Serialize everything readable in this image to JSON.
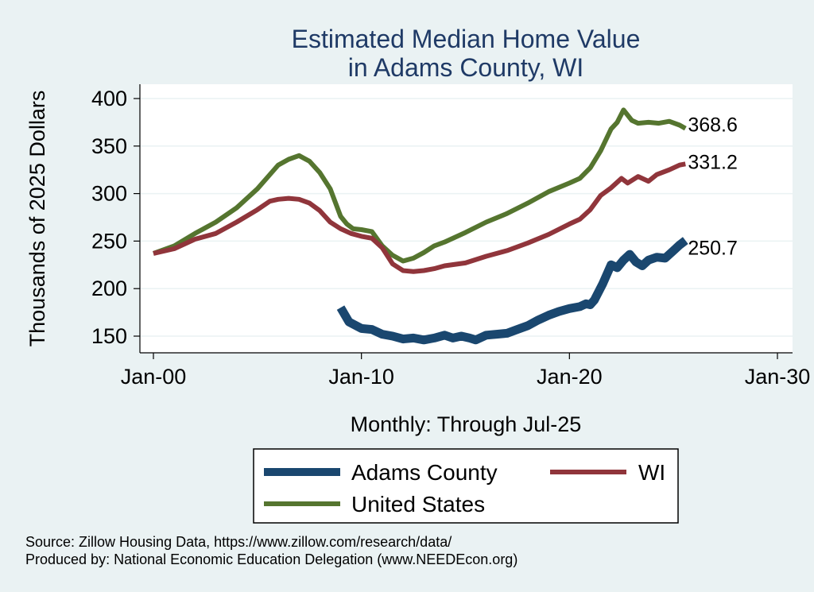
{
  "chart_data": {
    "type": "line",
    "title": "Estimated Median Home Value",
    "subtitle": "in Adams County, WI",
    "ylabel": "Thousands of 2025 Dollars",
    "xlabel": "Monthly: Through Jul-25",
    "xlim": [
      2000,
      2030
    ],
    "ylim": [
      140,
      410
    ],
    "yticks": [
      150,
      200,
      250,
      300,
      350,
      400
    ],
    "xticks": [
      {
        "value": 2000,
        "label": "Jan-00"
      },
      {
        "value": 2010,
        "label": "Jan-10"
      },
      {
        "value": 2020,
        "label": "Jan-20"
      },
      {
        "value": 2030,
        "label": "Jan-30"
      }
    ],
    "grid": true,
    "legend_position": "bottom",
    "series": [
      {
        "name": "Adams County",
        "color": "#1a476f",
        "end_label": "250.7",
        "points": [
          [
            2009.0,
            180
          ],
          [
            2009.4,
            165
          ],
          [
            2010.0,
            158
          ],
          [
            2010.5,
            157
          ],
          [
            2011.0,
            152
          ],
          [
            2011.5,
            150
          ],
          [
            2012.0,
            147
          ],
          [
            2012.5,
            148
          ],
          [
            2013.0,
            146
          ],
          [
            2013.5,
            148
          ],
          [
            2014.0,
            151
          ],
          [
            2014.4,
            148
          ],
          [
            2014.8,
            150
          ],
          [
            2015.2,
            148
          ],
          [
            2015.5,
            146
          ],
          [
            2016.0,
            151
          ],
          [
            2016.5,
            152
          ],
          [
            2017.0,
            153
          ],
          [
            2017.5,
            157
          ],
          [
            2018.0,
            161
          ],
          [
            2018.5,
            167
          ],
          [
            2019.0,
            172
          ],
          [
            2019.5,
            176
          ],
          [
            2020.0,
            179
          ],
          [
            2020.5,
            181
          ],
          [
            2020.8,
            184
          ],
          [
            2021.0,
            183
          ],
          [
            2021.2,
            188
          ],
          [
            2021.6,
            205
          ],
          [
            2022.0,
            225
          ],
          [
            2022.3,
            222
          ],
          [
            2022.6,
            230
          ],
          [
            2022.9,
            236
          ],
          [
            2023.2,
            228
          ],
          [
            2023.5,
            224
          ],
          [
            2023.8,
            230
          ],
          [
            2024.2,
            233
          ],
          [
            2024.6,
            232
          ],
          [
            2025.0,
            240
          ],
          [
            2025.3,
            246
          ],
          [
            2025.58,
            250.7
          ]
        ]
      },
      {
        "name": "WI",
        "color": "#90353b",
        "end_label": "331.2",
        "points": [
          [
            2000.0,
            237
          ],
          [
            2001.0,
            242
          ],
          [
            2002.0,
            252
          ],
          [
            2003.0,
            258
          ],
          [
            2004.0,
            270
          ],
          [
            2005.0,
            283
          ],
          [
            2005.6,
            292
          ],
          [
            2006.0,
            294
          ],
          [
            2006.5,
            295
          ],
          [
            2007.0,
            294
          ],
          [
            2007.5,
            290
          ],
          [
            2008.0,
            282
          ],
          [
            2008.5,
            270
          ],
          [
            2009.0,
            263
          ],
          [
            2009.5,
            258
          ],
          [
            2010.0,
            255
          ],
          [
            2010.5,
            253
          ],
          [
            2011.0,
            243
          ],
          [
            2011.5,
            226
          ],
          [
            2012.0,
            219
          ],
          [
            2012.5,
            218
          ],
          [
            2013.0,
            219
          ],
          [
            2013.5,
            221
          ],
          [
            2014.0,
            224
          ],
          [
            2015.0,
            227
          ],
          [
            2016.0,
            234
          ],
          [
            2017.0,
            240
          ],
          [
            2018.0,
            248
          ],
          [
            2019.0,
            257
          ],
          [
            2020.0,
            268
          ],
          [
            2020.5,
            273
          ],
          [
            2021.0,
            283
          ],
          [
            2021.5,
            298
          ],
          [
            2022.0,
            306
          ],
          [
            2022.5,
            316
          ],
          [
            2022.8,
            311
          ],
          [
            2023.3,
            318
          ],
          [
            2023.8,
            313
          ],
          [
            2024.2,
            320
          ],
          [
            2024.8,
            325
          ],
          [
            2025.3,
            330
          ],
          [
            2025.58,
            331.2
          ]
        ]
      },
      {
        "name": "United States",
        "color": "#55752f",
        "end_label": "368.6",
        "points": [
          [
            2000.0,
            237
          ],
          [
            2001.0,
            245
          ],
          [
            2002.0,
            258
          ],
          [
            2003.0,
            270
          ],
          [
            2004.0,
            285
          ],
          [
            2005.0,
            305
          ],
          [
            2005.6,
            320
          ],
          [
            2006.0,
            330
          ],
          [
            2006.5,
            336
          ],
          [
            2007.0,
            340
          ],
          [
            2007.5,
            334
          ],
          [
            2008.0,
            322
          ],
          [
            2008.5,
            305
          ],
          [
            2009.0,
            276
          ],
          [
            2009.3,
            268
          ],
          [
            2009.6,
            263
          ],
          [
            2010.0,
            262
          ],
          [
            2010.5,
            260
          ],
          [
            2011.0,
            245
          ],
          [
            2011.5,
            235
          ],
          [
            2012.0,
            229
          ],
          [
            2012.5,
            232
          ],
          [
            2013.0,
            238
          ],
          [
            2013.5,
            245
          ],
          [
            2014.0,
            249
          ],
          [
            2015.0,
            259
          ],
          [
            2016.0,
            270
          ],
          [
            2017.0,
            279
          ],
          [
            2018.0,
            290
          ],
          [
            2019.0,
            302
          ],
          [
            2020.0,
            311
          ],
          [
            2020.5,
            316
          ],
          [
            2021.0,
            327
          ],
          [
            2021.5,
            345
          ],
          [
            2022.0,
            368
          ],
          [
            2022.3,
            375
          ],
          [
            2022.6,
            388
          ],
          [
            2023.0,
            377
          ],
          [
            2023.3,
            374
          ],
          [
            2023.8,
            375
          ],
          [
            2024.3,
            374
          ],
          [
            2024.8,
            376
          ],
          [
            2025.3,
            372
          ],
          [
            2025.58,
            368.6
          ]
        ]
      }
    ],
    "notes": [
      "Source: Zillow Housing Data, https://www.zillow.com/research/data/",
      "Produced by: National Economic Education Delegation (www.NEEDEcon.org)"
    ]
  }
}
